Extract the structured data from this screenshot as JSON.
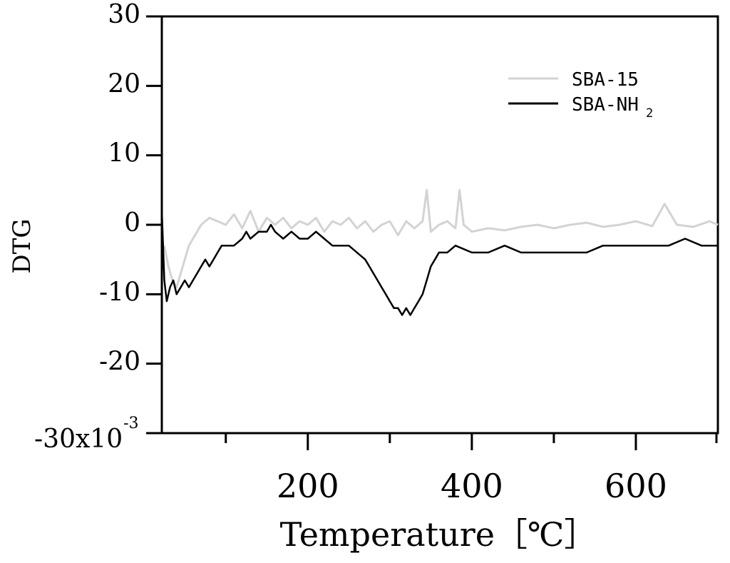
{
  "chart_data": {
    "type": "line",
    "title": "",
    "xlabel": "Temperature［℃］",
    "ylabel": "DTG",
    "xlim": [
      22,
      700
    ],
    "ylim": [
      -30,
      30
    ],
    "y_unit_prefix": "x10",
    "y_unit_exponent": "-3",
    "x_major_ticks": [
      200,
      400,
      600
    ],
    "x_minor_ticks": [
      100,
      300,
      500,
      700
    ],
    "y_ticks": [
      -30,
      -20,
      -10,
      0,
      10,
      20,
      30
    ],
    "grid": false,
    "legend_position": "top-right",
    "legend": [
      {
        "label": "SBA-15",
        "color": "#d3d3d3"
      },
      {
        "label_main": "SBA-NH",
        "label_sub": "2",
        "color": "#000000"
      }
    ],
    "series": [
      {
        "name": "SBA-15",
        "color": "#d3d3d3",
        "x": [
          25,
          30,
          35,
          40,
          45,
          50,
          55,
          60,
          65,
          70,
          80,
          90,
          100,
          110,
          120,
          130,
          140,
          150,
          160,
          170,
          180,
          190,
          200,
          210,
          220,
          230,
          240,
          250,
          260,
          270,
          280,
          290,
          300,
          310,
          320,
          330,
          340,
          345,
          350,
          360,
          370,
          380,
          385,
          390,
          400,
          420,
          440,
          460,
          480,
          500,
          520,
          540,
          560,
          580,
          600,
          620,
          635,
          650,
          670,
          690,
          700
        ],
        "y": [
          -3,
          -6,
          -8,
          -9,
          -7,
          -5,
          -3,
          -2,
          -1,
          0,
          1,
          0.5,
          0,
          1.5,
          -0.5,
          2,
          -1,
          1,
          0,
          1,
          -0.5,
          0.5,
          0,
          1,
          -1,
          0.5,
          0,
          1,
          -0.5,
          0.5,
          -1,
          0,
          0.5,
          -1.5,
          0.5,
          -0.5,
          0.5,
          5,
          -1,
          0,
          0.5,
          -0.5,
          5,
          0,
          -1,
          -0.5,
          -0.8,
          -0.3,
          0,
          -0.5,
          0,
          0.3,
          -0.3,
          0,
          0.5,
          -0.2,
          3,
          0,
          -0.3,
          0.5,
          0
        ]
      },
      {
        "name": "SBA-NH2",
        "color": "#000000",
        "x": [
          22,
          25,
          28,
          32,
          36,
          40,
          45,
          50,
          55,
          60,
          65,
          70,
          75,
          80,
          85,
          90,
          95,
          100,
          110,
          120,
          125,
          130,
          140,
          150,
          155,
          160,
          170,
          180,
          190,
          200,
          210,
          220,
          230,
          240,
          250,
          260,
          270,
          275,
          280,
          285,
          290,
          295,
          300,
          305,
          310,
          315,
          320,
          325,
          330,
          335,
          340,
          345,
          350,
          355,
          360,
          370,
          380,
          400,
          420,
          440,
          460,
          480,
          500,
          520,
          540,
          560,
          580,
          600,
          620,
          640,
          660,
          680,
          690,
          700
        ],
        "y": [
          2,
          -8,
          -11,
          -9,
          -8,
          -10,
          -9,
          -8,
          -9,
          -8,
          -7,
          -6,
          -5,
          -6,
          -5,
          -4,
          -3,
          -3,
          -3,
          -2,
          -1,
          -2,
          -1,
          -1,
          0,
          -1,
          -2,
          -1,
          -2,
          -2,
          -1,
          -2,
          -3,
          -3,
          -3,
          -4,
          -5,
          -6,
          -7,
          -8,
          -9,
          -10,
          -11,
          -12,
          -12,
          -13,
          -12,
          -13,
          -12,
          -11,
          -10,
          -8,
          -6,
          -5,
          -4,
          -4,
          -3,
          -4,
          -4,
          -3,
          -4,
          -4,
          -4,
          -4,
          -4,
          -3,
          -3,
          -3,
          -3,
          -3,
          -2,
          -3,
          -3,
          -3
        ]
      }
    ]
  }
}
